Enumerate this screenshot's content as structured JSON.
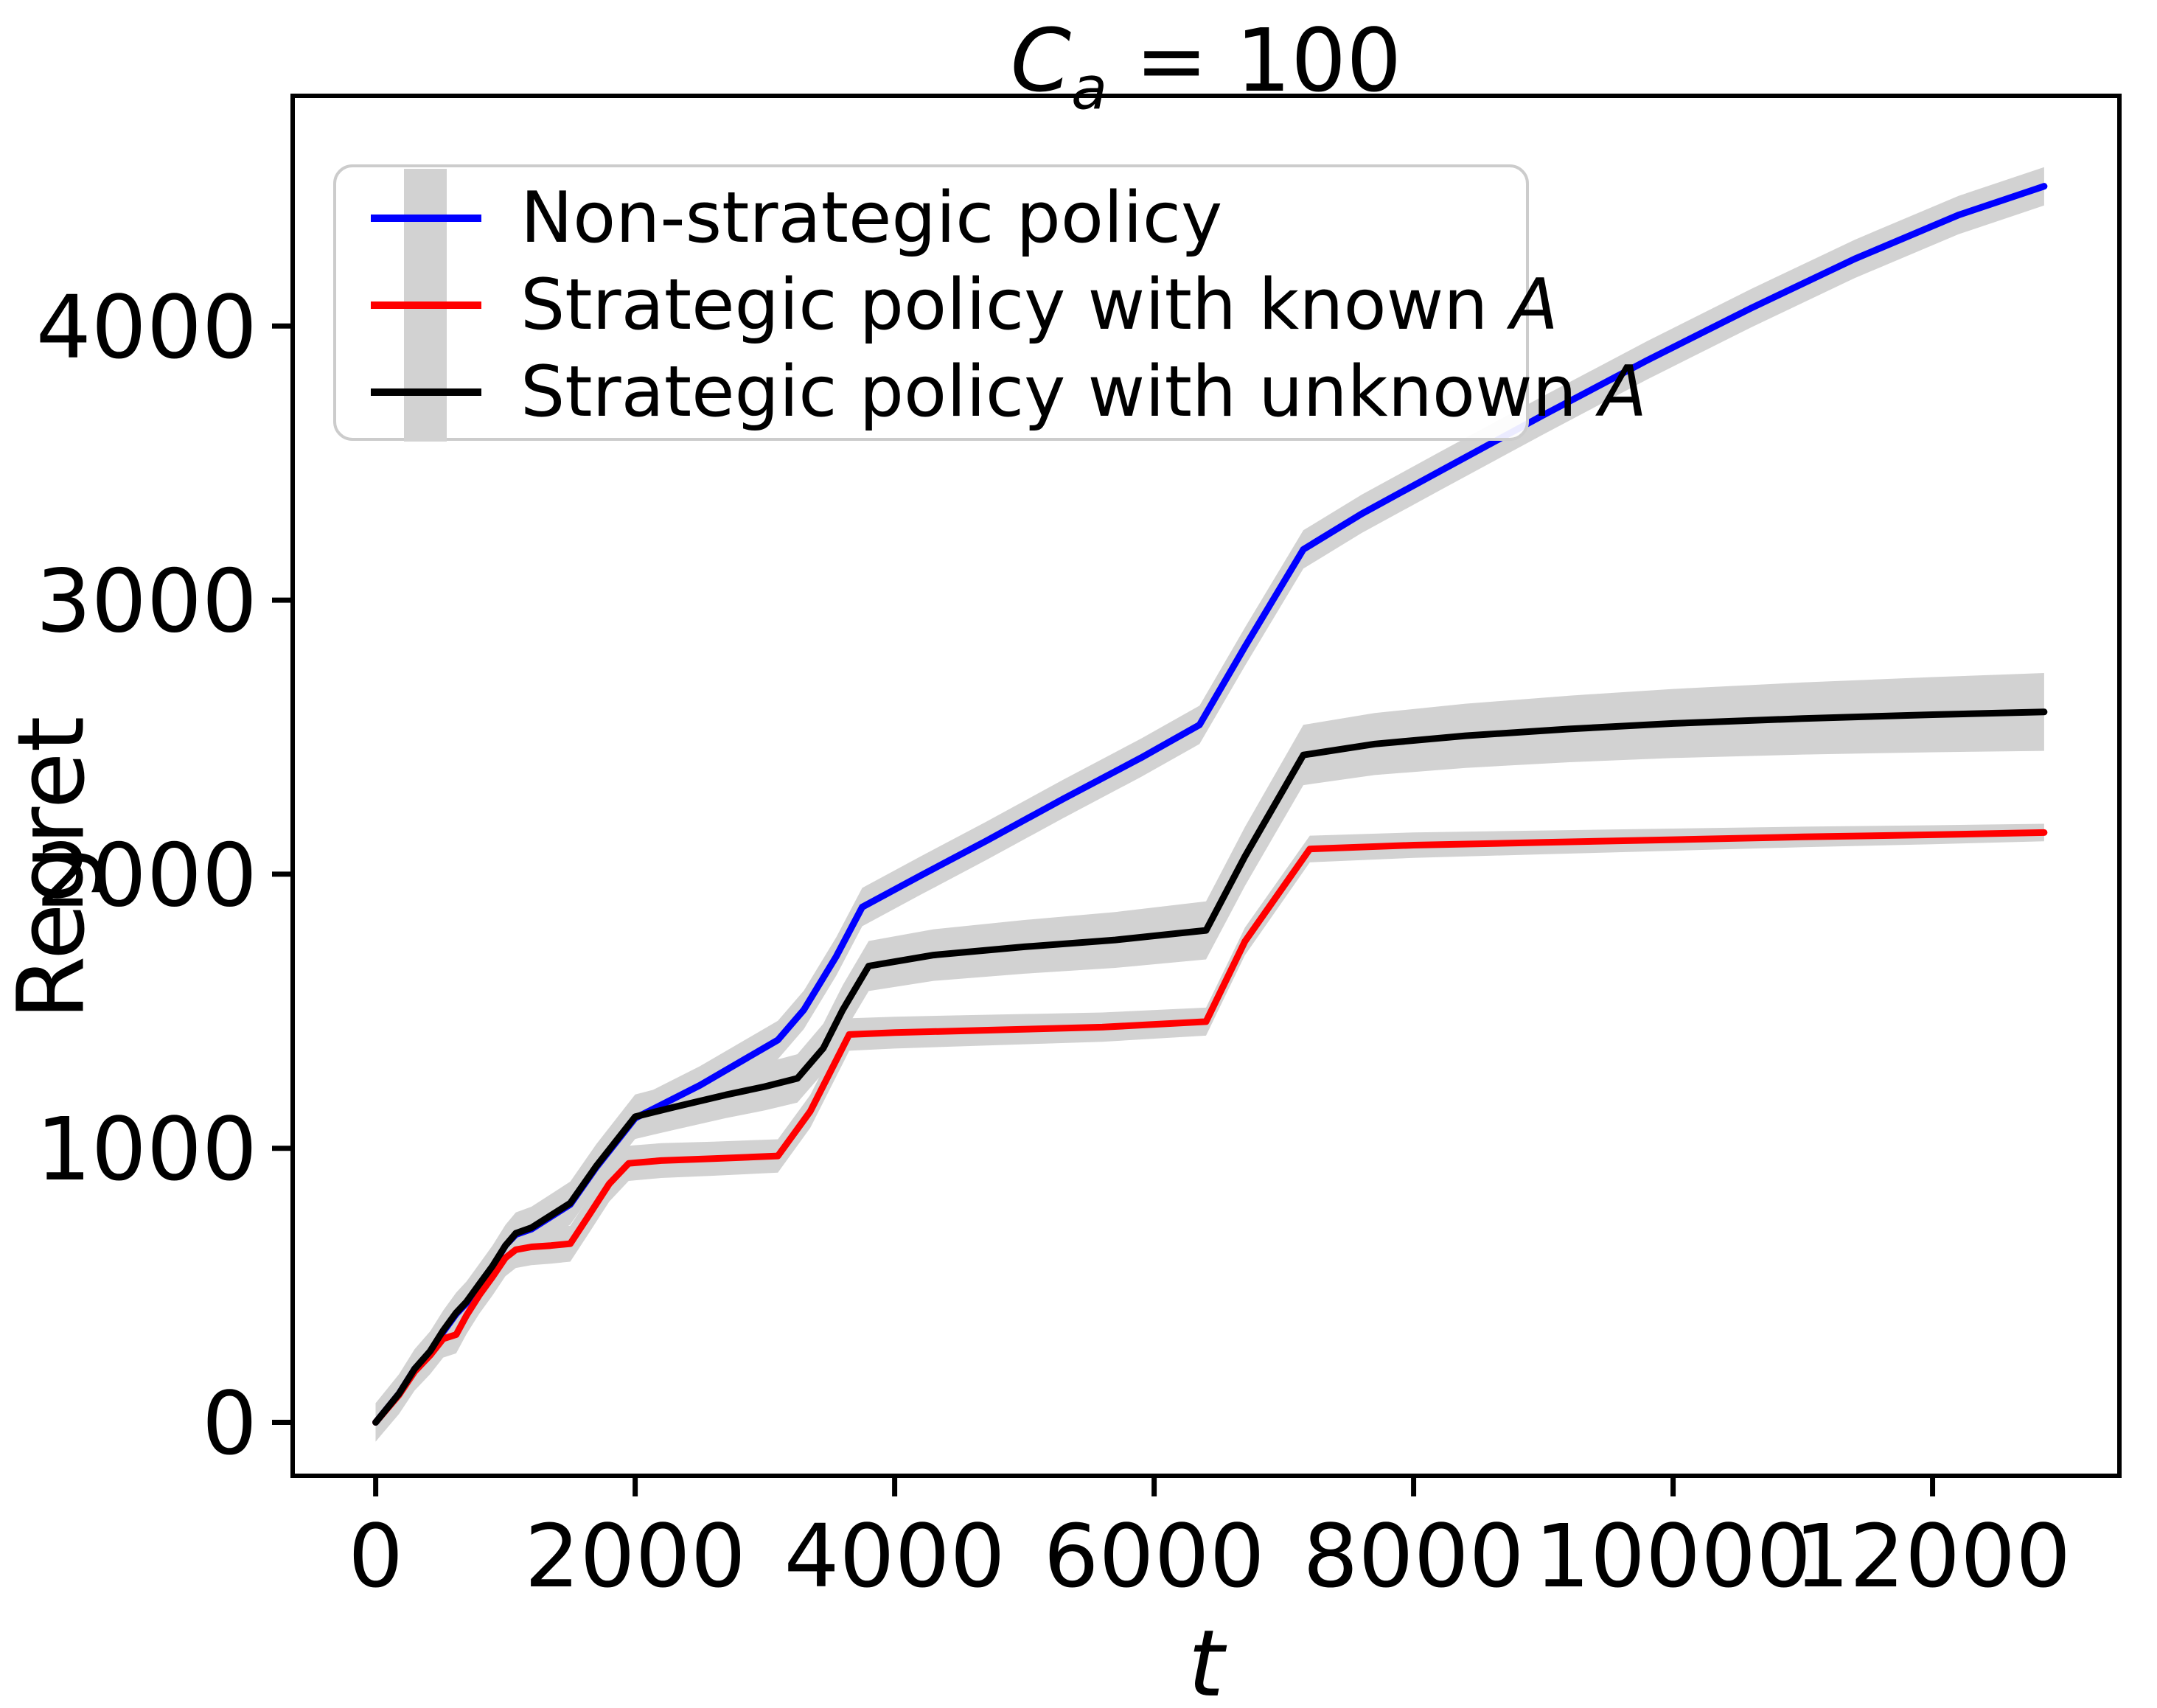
{
  "title": {
    "var": "C",
    "sub": "a",
    "rest": " = 100"
  },
  "axes": {
    "xlabel": "t",
    "ylabel": "Regret"
  },
  "legend": {
    "items": [
      {
        "label": "Non-strategic policy",
        "math": "",
        "color": "#0000ff"
      },
      {
        "label": "Strategic policy with known ",
        "math": "A",
        "color": "#ff0000"
      },
      {
        "label": "Strategic policy with unknown ",
        "math": "A",
        "color": "#000000"
      }
    ]
  },
  "chart_data": {
    "type": "line",
    "title": "C_a = 100",
    "xlabel": "t",
    "ylabel": "Regret",
    "xlim": [
      -640,
      13440
    ],
    "ylim": [
      -195,
      4840
    ],
    "x_ticks": [
      0,
      2000,
      4000,
      6000,
      8000,
      10000,
      12000
    ],
    "y_ticks": [
      0,
      1000,
      2000,
      3000,
      4000
    ],
    "grid": false,
    "legend_position": "upper left",
    "band_color": "#d2d2d2",
    "series": [
      {
        "name": "Non-strategic policy",
        "color": "#0000ff",
        "band_halfwidth": [
          70,
          70
        ],
        "points": [
          [
            0,
            0
          ],
          [
            180,
            105
          ],
          [
            300,
            195
          ],
          [
            420,
            255
          ],
          [
            520,
            330
          ],
          [
            620,
            395
          ],
          [
            700,
            435
          ],
          [
            800,
            500
          ],
          [
            900,
            565
          ],
          [
            1000,
            645
          ],
          [
            1080,
            685
          ],
          [
            1200,
            705
          ],
          [
            1350,
            750
          ],
          [
            1500,
            795
          ],
          [
            1700,
            930
          ],
          [
            1850,
            1020
          ],
          [
            2000,
            1110
          ],
          [
            2500,
            1230
          ],
          [
            3100,
            1395
          ],
          [
            3300,
            1505
          ],
          [
            3550,
            1700
          ],
          [
            3750,
            1880
          ],
          [
            4200,
            1995
          ],
          [
            4700,
            2120
          ],
          [
            5300,
            2275
          ],
          [
            5900,
            2425
          ],
          [
            6350,
            2545
          ],
          [
            6700,
            2830
          ],
          [
            7150,
            3185
          ],
          [
            7600,
            3315
          ],
          [
            8200,
            3470
          ],
          [
            9000,
            3675
          ],
          [
            9800,
            3875
          ],
          [
            10600,
            4065
          ],
          [
            11400,
            4245
          ],
          [
            12200,
            4405
          ],
          [
            12860,
            4510
          ]
        ]
      },
      {
        "name": "Strategic policy with known A",
        "color": "#ff0000",
        "band_halfwidth": [
          70,
          32
        ],
        "points": [
          [
            0,
            0
          ],
          [
            180,
            100
          ],
          [
            300,
            185
          ],
          [
            420,
            245
          ],
          [
            520,
            305
          ],
          [
            620,
            320
          ],
          [
            700,
            390
          ],
          [
            800,
            465
          ],
          [
            900,
            530
          ],
          [
            1000,
            600
          ],
          [
            1080,
            630
          ],
          [
            1200,
            640
          ],
          [
            1350,
            645
          ],
          [
            1500,
            652
          ],
          [
            1650,
            760
          ],
          [
            1800,
            870
          ],
          [
            1950,
            945
          ],
          [
            2200,
            955
          ],
          [
            2600,
            962
          ],
          [
            3100,
            972
          ],
          [
            3350,
            1135
          ],
          [
            3650,
            1415
          ],
          [
            4000,
            1422
          ],
          [
            4800,
            1432
          ],
          [
            5600,
            1442
          ],
          [
            6400,
            1462
          ],
          [
            6700,
            1755
          ],
          [
            7200,
            2092
          ],
          [
            8000,
            2106
          ],
          [
            9000,
            2116
          ],
          [
            10000,
            2126
          ],
          [
            11000,
            2136
          ],
          [
            12000,
            2144
          ],
          [
            12860,
            2152
          ]
        ]
      },
      {
        "name": "Strategic policy with unknown A",
        "color": "#000000",
        "band_halfwidth": [
          70,
          142
        ],
        "points": [
          [
            0,
            0
          ],
          [
            180,
            105
          ],
          [
            300,
            195
          ],
          [
            420,
            260
          ],
          [
            520,
            335
          ],
          [
            620,
            400
          ],
          [
            700,
            440
          ],
          [
            800,
            505
          ],
          [
            900,
            570
          ],
          [
            1000,
            645
          ],
          [
            1080,
            690
          ],
          [
            1200,
            710
          ],
          [
            1350,
            755
          ],
          [
            1500,
            800
          ],
          [
            1700,
            935
          ],
          [
            1850,
            1025
          ],
          [
            2000,
            1115
          ],
          [
            2300,
            1150
          ],
          [
            2700,
            1195
          ],
          [
            3000,
            1225
          ],
          [
            3250,
            1255
          ],
          [
            3450,
            1365
          ],
          [
            3600,
            1505
          ],
          [
            3800,
            1665
          ],
          [
            4300,
            1705
          ],
          [
            5000,
            1735
          ],
          [
            5700,
            1760
          ],
          [
            6400,
            1795
          ],
          [
            6700,
            2065
          ],
          [
            7150,
            2435
          ],
          [
            7700,
            2475
          ],
          [
            8400,
            2505
          ],
          [
            9200,
            2530
          ],
          [
            10000,
            2550
          ],
          [
            11000,
            2568
          ],
          [
            12000,
            2582
          ],
          [
            12860,
            2592
          ]
        ]
      }
    ]
  }
}
